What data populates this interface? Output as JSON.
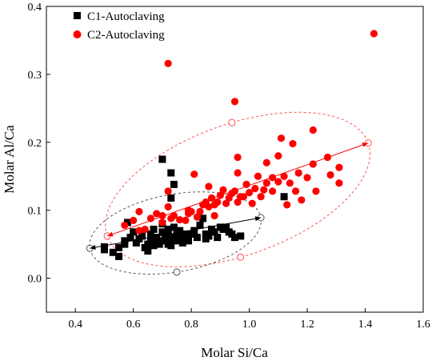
{
  "chart_data": {
    "type": "scatter",
    "xlabel": "Molar Si/Ca",
    "ylabel": "Molar Al/Ca",
    "xlim": [
      0.3,
      1.6
    ],
    "ylim": [
      -0.05,
      0.4
    ],
    "xticks": [
      "0.4",
      "0.6",
      "0.8",
      "1.0",
      "1.2",
      "1.4",
      "1.6"
    ],
    "yticks": [
      "0.0",
      "0.1",
      "0.2",
      "0.3",
      "0.4"
    ],
    "legend_position": "top-left",
    "series": [
      {
        "name": "C1-Autoclaving",
        "marker": "square",
        "color": "#000000",
        "points": [
          [
            0.5,
            0.042
          ],
          [
            0.5,
            0.046
          ],
          [
            0.53,
            0.038
          ],
          [
            0.55,
            0.032
          ],
          [
            0.55,
            0.045
          ],
          [
            0.57,
            0.05
          ],
          [
            0.57,
            0.055
          ],
          [
            0.58,
            0.082
          ],
          [
            0.59,
            0.06
          ],
          [
            0.6,
            0.068
          ],
          [
            0.61,
            0.052
          ],
          [
            0.62,
            0.058
          ],
          [
            0.63,
            0.062
          ],
          [
            0.64,
            0.045
          ],
          [
            0.65,
            0.05
          ],
          [
            0.65,
            0.04
          ],
          [
            0.66,
            0.055
          ],
          [
            0.66,
            0.065
          ],
          [
            0.67,
            0.048
          ],
          [
            0.67,
            0.072
          ],
          [
            0.68,
            0.06
          ],
          [
            0.68,
            0.058
          ],
          [
            0.69,
            0.05
          ],
          [
            0.7,
            0.068
          ],
          [
            0.7,
            0.08
          ],
          [
            0.7,
            0.055
          ],
          [
            0.71,
            0.058
          ],
          [
            0.71,
            0.062
          ],
          [
            0.72,
            0.05
          ],
          [
            0.72,
            0.072
          ],
          [
            0.72,
            0.065
          ],
          [
            0.73,
            0.048
          ],
          [
            0.73,
            0.06
          ],
          [
            0.74,
            0.058
          ],
          [
            0.74,
            0.075
          ],
          [
            0.75,
            0.055
          ],
          [
            0.75,
            0.065
          ],
          [
            0.76,
            0.06
          ],
          [
            0.76,
            0.07
          ],
          [
            0.77,
            0.052
          ],
          [
            0.78,
            0.065
          ],
          [
            0.78,
            0.06
          ],
          [
            0.79,
            0.055
          ],
          [
            0.8,
            0.065
          ],
          [
            0.81,
            0.07
          ],
          [
            0.82,
            0.06
          ],
          [
            0.83,
            0.078
          ],
          [
            0.84,
            0.088
          ],
          [
            0.85,
            0.058
          ],
          [
            0.85,
            0.065
          ],
          [
            0.86,
            0.062
          ],
          [
            0.87,
            0.072
          ],
          [
            0.88,
            0.068
          ],
          [
            0.89,
            0.06
          ],
          [
            0.9,
            0.075
          ],
          [
            0.91,
            0.072
          ],
          [
            0.92,
            0.075
          ],
          [
            0.93,
            0.068
          ],
          [
            0.94,
            0.065
          ],
          [
            0.95,
            0.06
          ],
          [
            0.97,
            0.062
          ],
          [
            0.7,
            0.175
          ],
          [
            0.73,
            0.155
          ],
          [
            0.73,
            0.118
          ],
          [
            0.74,
            0.138
          ],
          [
            1.12,
            0.12
          ]
        ]
      },
      {
        "name": "C2-Autoclaving",
        "marker": "circle",
        "color": "#ff0000",
        "points": [
          [
            0.57,
            0.078
          ],
          [
            0.6,
            0.085
          ],
          [
            0.62,
            0.098
          ],
          [
            0.62,
            0.07
          ],
          [
            0.64,
            0.072
          ],
          [
            0.66,
            0.088
          ],
          [
            0.68,
            0.095
          ],
          [
            0.7,
            0.082
          ],
          [
            0.7,
            0.092
          ],
          [
            0.72,
            0.105
          ],
          [
            0.72,
            0.128
          ],
          [
            0.72,
            0.316
          ],
          [
            0.73,
            0.088
          ],
          [
            0.74,
            0.092
          ],
          [
            0.76,
            0.086
          ],
          [
            0.78,
            0.085
          ],
          [
            0.79,
            0.1
          ],
          [
            0.8,
            0.098
          ],
          [
            0.81,
            0.153
          ],
          [
            0.82,
            0.09
          ],
          [
            0.83,
            0.098
          ],
          [
            0.84,
            0.108
          ],
          [
            0.85,
            0.112
          ],
          [
            0.86,
            0.105
          ],
          [
            0.87,
            0.118
          ],
          [
            0.88,
            0.092
          ],
          [
            0.89,
            0.112
          ],
          [
            0.9,
            0.122
          ],
          [
            0.91,
            0.13
          ],
          [
            0.92,
            0.11
          ],
          [
            0.93,
            0.118
          ],
          [
            0.94,
            0.125
          ],
          [
            0.95,
            0.26
          ],
          [
            0.95,
            0.128
          ],
          [
            0.96,
            0.112
          ],
          [
            0.96,
            0.155
          ],
          [
            0.96,
            0.178
          ],
          [
            0.97,
            0.12
          ],
          [
            0.98,
            0.12
          ],
          [
            1.0,
            0.126
          ],
          [
            1.01,
            0.11
          ],
          [
            1.02,
            0.132
          ],
          [
            1.03,
            0.15
          ],
          [
            1.04,
            0.12
          ],
          [
            1.05,
            0.13
          ],
          [
            1.06,
            0.14
          ],
          [
            1.06,
            0.17
          ],
          [
            1.08,
            0.148
          ],
          [
            1.08,
            0.128
          ],
          [
            1.1,
            0.142
          ],
          [
            1.1,
            0.18
          ],
          [
            1.11,
            0.206
          ],
          [
            1.12,
            0.15
          ],
          [
            1.13,
            0.108
          ],
          [
            1.14,
            0.14
          ],
          [
            1.16,
            0.128
          ],
          [
            1.17,
            0.155
          ],
          [
            1.18,
            0.115
          ],
          [
            1.2,
            0.148
          ],
          [
            1.22,
            0.168
          ],
          [
            1.22,
            0.218
          ],
          [
            1.23,
            0.128
          ],
          [
            1.27,
            0.178
          ],
          [
            1.28,
            0.152
          ],
          [
            1.31,
            0.163
          ],
          [
            1.31,
            0.14
          ],
          [
            1.43,
            0.36
          ],
          [
            0.79,
            0.095
          ],
          [
            0.86,
            0.135
          ],
          [
            0.88,
            0.108
          ],
          [
            0.99,
            0.138
          ],
          [
            1.15,
            0.198
          ]
        ]
      }
    ],
    "annotations": {
      "c1_ellipse_color": "#555555",
      "c2_ellipse_color": "#ff4d4d",
      "c1_trend_line": [
        [
          0.45,
          0.044
        ],
        [
          1.04,
          0.089
        ]
      ],
      "c2_trend_line": [
        [
          0.51,
          0.062
        ],
        [
          1.41,
          0.199
        ]
      ],
      "c1_ellipse_markers": [
        [
          0.45,
          0.044
        ],
        [
          1.04,
          0.089
        ],
        [
          0.75,
          0.009
        ]
      ],
      "c2_ellipse_markers": [
        [
          0.51,
          0.062
        ],
        [
          1.41,
          0.199
        ],
        [
          0.94,
          0.229
        ],
        [
          0.97,
          0.031
        ]
      ]
    }
  }
}
